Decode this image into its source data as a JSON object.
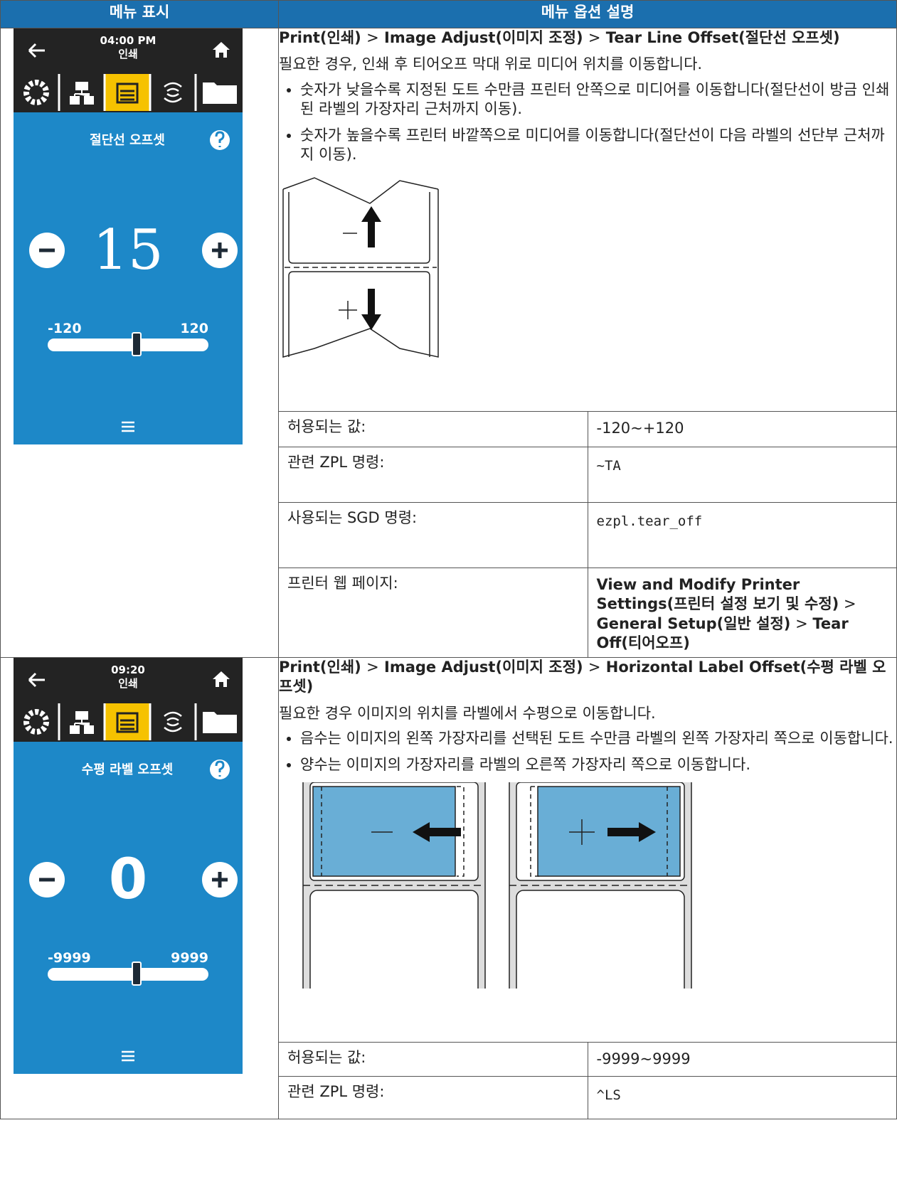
{
  "header": {
    "left": "메뉴 표시",
    "right": "메뉴 옵션 설명"
  },
  "path_separator": ">",
  "sections": [
    {
      "screen": {
        "time": "04:00 PM",
        "menu": "인쇄",
        "setting": "절단선 오프셋",
        "value": "15",
        "min": "-120",
        "max": "120"
      },
      "path": [
        "Print(인쇄)",
        "Image Adjust(이미지 조정)",
        "Tear Line Offset(절단선 오프셋)"
      ],
      "intro": "필요한 경우, 인쇄 후 티어오프 막대 위로 미디어 위치를 이동합니다.",
      "bullets": [
        "숫자가 낮을수록 지정된 도트 수만큼 프린터 안쪽으로 미디어를 이동합니다(절단선이 방금 인쇄된 라벨의 가장자리 근처까지 이동).",
        "숫자가 높을수록 프린터 바깥쪽으로 미디어를 이동합니다(절단선이 다음 라벨의 선단부 근처까지 이동)."
      ],
      "details": [
        {
          "label": "허용되는 값:",
          "value": "-120~+120"
        },
        {
          "label": "관련 ZPL 명령:",
          "value": "~TA",
          "code": true
        },
        {
          "label": "사용되는 SGD 명령:",
          "value": "ezpl.tear_off",
          "code": true
        },
        {
          "label": "프린터 웹 페이지:",
          "value": [
            "View and Modify Printer Settings(프린터 설정 보기 및 수정)",
            "General Setup(일반 설정)",
            "Tear Off(티어오프)"
          ]
        }
      ]
    },
    {
      "screen": {
        "time": "09:20",
        "menu": "인쇄",
        "setting": "수평 라벨 오프셋",
        "value": "0",
        "min": "-9999",
        "max": "9999"
      },
      "path": [
        "Print(인쇄)",
        "Image Adjust(이미지 조정)",
        "Horizontal Label Offset(수평 라벨 오프셋)"
      ],
      "intro": "필요한 경우 이미지의 위치를 라벨에서 수평으로 이동합니다.",
      "bullets": [
        "음수는 이미지의 왼쪽 가장자리를 선택된 도트 수만큼 라벨의 왼쪽 가장자리 쪽으로 이동합니다.",
        "양수는 이미지의 가장자리를 라벨의 오른쪽 가장자리 쪽으로 이동합니다."
      ],
      "details": [
        {
          "label": "허용되는 값:",
          "value": "-9999~9999"
        },
        {
          "label": "관련 ZPL 명령:",
          "value": "^LS",
          "code": true
        }
      ]
    }
  ]
}
